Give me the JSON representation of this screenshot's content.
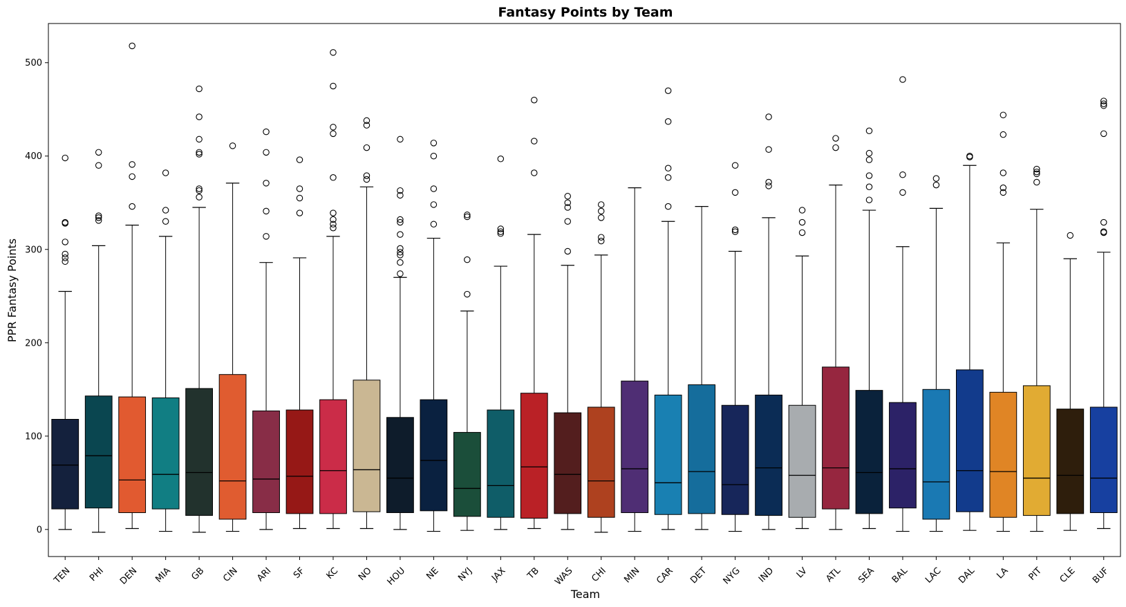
{
  "chart_data": {
    "type": "boxplot",
    "title": "Fantasy Points by Team",
    "xlabel": "Team",
    "ylabel": "PPR Fantasy Points",
    "ylim": [
      -29,
      542
    ],
    "yticks": [
      0,
      100,
      200,
      300,
      400,
      500
    ],
    "grid": false,
    "legend": "none",
    "boxes": [
      {
        "team": "TEN",
        "color": "#14213D",
        "q1": 22,
        "median": 69,
        "q3": 118,
        "whisker_low": 0,
        "whisker_high": 255,
        "outliers": [
          287,
          291,
          295,
          308,
          328,
          329,
          398
        ]
      },
      {
        "team": "PHI",
        "color": "#0A4650",
        "q1": 23,
        "median": 79,
        "q3": 143,
        "whisker_low": -3,
        "whisker_high": 304,
        "outliers": [
          331,
          334,
          336,
          390,
          404
        ]
      },
      {
        "team": "DEN",
        "color": "#E15A30",
        "q1": 18,
        "median": 53,
        "q3": 142,
        "whisker_low": 1,
        "whisker_high": 326,
        "outliers": [
          346,
          378,
          391,
          518
        ]
      },
      {
        "team": "MIA",
        "color": "#117E83",
        "q1": 22,
        "median": 59,
        "q3": 141,
        "whisker_low": -2,
        "whisker_high": 314,
        "outliers": [
          330,
          342,
          382
        ]
      },
      {
        "team": "GB",
        "color": "#22322D",
        "q1": 15,
        "median": 61,
        "q3": 151,
        "whisker_low": -3,
        "whisker_high": 345,
        "outliers": [
          356,
          363,
          365,
          402,
          404,
          418,
          442,
          472
        ]
      },
      {
        "team": "CIN",
        "color": "#E05C30",
        "q1": 11,
        "median": 52,
        "q3": 166,
        "whisker_low": -2,
        "whisker_high": 371,
        "outliers": [
          411
        ]
      },
      {
        "team": "ARI",
        "color": "#882D47",
        "q1": 18,
        "median": 54,
        "q3": 127,
        "whisker_low": 0,
        "whisker_high": 286,
        "outliers": [
          314,
          341,
          371,
          404,
          426
        ]
      },
      {
        "team": "SF",
        "color": "#961816",
        "q1": 17,
        "median": 57,
        "q3": 128,
        "whisker_low": 1,
        "whisker_high": 291,
        "outliers": [
          339,
          355,
          365,
          396
        ]
      },
      {
        "team": "KC",
        "color": "#CB2C48",
        "q1": 17,
        "median": 63,
        "q3": 139,
        "whisker_low": 1,
        "whisker_high": 314,
        "outliers": [
          323,
          327,
          332,
          339,
          377,
          424,
          431,
          475,
          511
        ]
      },
      {
        "team": "NO",
        "color": "#CAB793",
        "q1": 19,
        "median": 64,
        "q3": 160,
        "whisker_low": 1,
        "whisker_high": 367,
        "outliers": [
          375,
          379,
          409,
          433,
          438
        ]
      },
      {
        "team": "HOU",
        "color": "#0E1C2B",
        "q1": 18,
        "median": 55,
        "q3": 120,
        "whisker_low": 0,
        "whisker_high": 270,
        "outliers": [
          274,
          286,
          294,
          297,
          301,
          316,
          329,
          332,
          358,
          363,
          418
        ]
      },
      {
        "team": "NE",
        "color": "#0A2140",
        "q1": 20,
        "median": 74,
        "q3": 139,
        "whisker_low": -2,
        "whisker_high": 312,
        "outliers": [
          327,
          348,
          365,
          400,
          414
        ]
      },
      {
        "team": "NYJ",
        "color": "#1B4E3A",
        "q1": 14,
        "median": 44,
        "q3": 104,
        "whisker_low": -1,
        "whisker_high": 234,
        "outliers": [
          252,
          289,
          335,
          337
        ]
      },
      {
        "team": "JAX",
        "color": "#0F5D68",
        "q1": 13,
        "median": 47,
        "q3": 128,
        "whisker_low": 0,
        "whisker_high": 282,
        "outliers": [
          317,
          319,
          322,
          397
        ]
      },
      {
        "team": "TB",
        "color": "#BA2126",
        "q1": 12,
        "median": 67,
        "q3": 146,
        "whisker_low": 1,
        "whisker_high": 316,
        "outliers": [
          382,
          416,
          460
        ]
      },
      {
        "team": "WAS",
        "color": "#531E1E",
        "q1": 17,
        "median": 59,
        "q3": 125,
        "whisker_low": 0,
        "whisker_high": 283,
        "outliers": [
          298,
          330,
          345,
          350,
          357
        ]
      },
      {
        "team": "CHI",
        "color": "#AE411F",
        "q1": 13,
        "median": 52,
        "q3": 131,
        "whisker_low": -3,
        "whisker_high": 294,
        "outliers": [
          309,
          313,
          334,
          341,
          348
        ]
      },
      {
        "team": "MIN",
        "color": "#4F2E74",
        "q1": 18,
        "median": 65,
        "q3": 159,
        "whisker_low": -2,
        "whisker_high": 366,
        "outliers": []
      },
      {
        "team": "CAR",
        "color": "#1980B2",
        "q1": 16,
        "median": 50,
        "q3": 144,
        "whisker_low": 0,
        "whisker_high": 330,
        "outliers": [
          346,
          377,
          387,
          437,
          470
        ]
      },
      {
        "team": "DET",
        "color": "#156D9C",
        "q1": 17,
        "median": 62,
        "q3": 155,
        "whisker_low": 0,
        "whisker_high": 346,
        "outliers": []
      },
      {
        "team": "NYG",
        "color": "#17265A",
        "q1": 16,
        "median": 48,
        "q3": 133,
        "whisker_low": -2,
        "whisker_high": 298,
        "outliers": [
          319,
          321,
          361,
          390
        ]
      },
      {
        "team": "IND",
        "color": "#0B2C55",
        "q1": 15,
        "median": 66,
        "q3": 144,
        "whisker_low": 0,
        "whisker_high": 334,
        "outliers": [
          368,
          372,
          407,
          442
        ]
      },
      {
        "team": "LV",
        "color": "#A8ACAF",
        "q1": 13,
        "median": 58,
        "q3": 133,
        "whisker_low": 1,
        "whisker_high": 293,
        "outliers": [
          318,
          329,
          342
        ]
      },
      {
        "team": "ATL",
        "color": "#96263F",
        "q1": 22,
        "median": 66,
        "q3": 174,
        "whisker_low": 0,
        "whisker_high": 369,
        "outliers": [
          409,
          419
        ]
      },
      {
        "team": "SEA",
        "color": "#0A223B",
        "q1": 17,
        "median": 61,
        "q3": 149,
        "whisker_low": 1,
        "whisker_high": 342,
        "outliers": [
          353,
          367,
          379,
          396,
          403,
          427
        ]
      },
      {
        "team": "BAL",
        "color": "#2C2267",
        "q1": 23,
        "median": 65,
        "q3": 136,
        "whisker_low": -2,
        "whisker_high": 303,
        "outliers": [
          361,
          380,
          482
        ]
      },
      {
        "team": "LAC",
        "color": "#1A79B3",
        "q1": 11,
        "median": 51,
        "q3": 150,
        "whisker_low": -2,
        "whisker_high": 344,
        "outliers": [
          369,
          376
        ]
      },
      {
        "team": "DAL",
        "color": "#123B8C",
        "q1": 19,
        "median": 63,
        "q3": 171,
        "whisker_low": -1,
        "whisker_high": 390,
        "outliers": [
          399,
          400
        ]
      },
      {
        "team": "LA",
        "color": "#E08525",
        "q1": 13,
        "median": 62,
        "q3": 147,
        "whisker_low": -2,
        "whisker_high": 307,
        "outliers": [
          361,
          366,
          382,
          423,
          444
        ]
      },
      {
        "team": "PIT",
        "color": "#E1AB33",
        "q1": 15,
        "median": 55,
        "q3": 154,
        "whisker_low": -2,
        "whisker_high": 343,
        "outliers": [
          372,
          381,
          383,
          386
        ]
      },
      {
        "team": "CLE",
        "color": "#2E1E0C",
        "q1": 17,
        "median": 58,
        "q3": 129,
        "whisker_low": -1,
        "whisker_high": 290,
        "outliers": [
          315
        ]
      },
      {
        "team": "BUF",
        "color": "#1740A0",
        "q1": 18,
        "median": 55,
        "q3": 131,
        "whisker_low": 1,
        "whisker_high": 297,
        "outliers": [
          318,
          319,
          329,
          424,
          454,
          456,
          459
        ]
      }
    ]
  }
}
